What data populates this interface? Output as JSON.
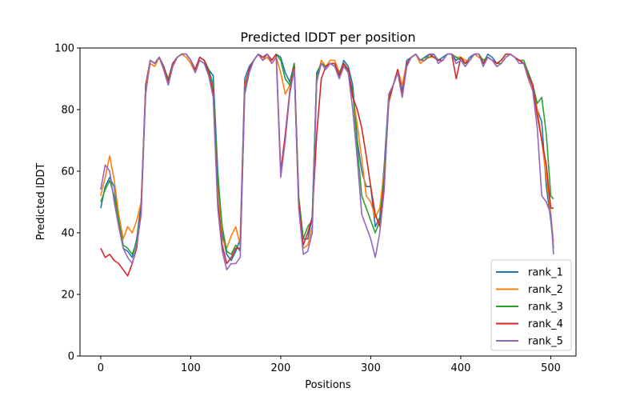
{
  "chart_data": {
    "type": "line",
    "title": "Predicted lDDT per position",
    "xlabel": "Positions",
    "ylabel": "Predicted lDDT",
    "xlim": [
      -23,
      528
    ],
    "ylim": [
      0,
      100
    ],
    "xticks": [
      0,
      100,
      200,
      300,
      400,
      500
    ],
    "yticks": [
      0,
      20,
      40,
      60,
      80,
      100
    ],
    "grid": false,
    "legend_position": "lower-right",
    "series": [
      {
        "name": "rank_1",
        "color": "#1f77b4",
        "x": [
          0,
          5,
          10,
          15,
          20,
          25,
          30,
          35,
          40,
          45,
          50,
          55,
          60,
          65,
          70,
          75,
          80,
          85,
          90,
          95,
          100,
          105,
          110,
          115,
          120,
          125,
          130,
          135,
          140,
          145,
          150,
          155,
          160,
          165,
          170,
          175,
          180,
          185,
          190,
          195,
          200,
          205,
          210,
          215,
          220,
          225,
          230,
          235,
          240,
          245,
          250,
          255,
          260,
          265,
          270,
          275,
          280,
          285,
          290,
          295,
          300,
          305,
          310,
          315,
          320,
          325,
          330,
          335,
          340,
          345,
          350,
          355,
          360,
          365,
          370,
          375,
          380,
          385,
          390,
          395,
          400,
          405,
          410,
          415,
          420,
          425,
          430,
          435,
          440,
          445,
          450,
          455,
          460,
          465,
          470,
          475,
          480,
          485,
          490,
          495,
          500,
          503
        ],
        "y": [
          48,
          55,
          58,
          55,
          45,
          35,
          34,
          32,
          38,
          50,
          85,
          96,
          95,
          97,
          94,
          89,
          95,
          97,
          98,
          98,
          96,
          93,
          97,
          96,
          93,
          91,
          60,
          40,
          33,
          31,
          34,
          38,
          90,
          94,
          96,
          98,
          97,
          98,
          96,
          98,
          97,
          92,
          89,
          95,
          50,
          38,
          38,
          45,
          92,
          95,
          94,
          95,
          95,
          91,
          96,
          94,
          88,
          70,
          60,
          55,
          55,
          42,
          45,
          62,
          85,
          88,
          93,
          86,
          96,
          97,
          98,
          96,
          97,
          98,
          98,
          96,
          97,
          98,
          98,
          96,
          97,
          95,
          97,
          98,
          98,
          95,
          98,
          97,
          95,
          96,
          98,
          98,
          97,
          96,
          95,
          92,
          88,
          80,
          76,
          55,
          44,
          35
        ]
      },
      {
        "name": "rank_2",
        "color": "#ff7f0e",
        "x": [
          0,
          5,
          10,
          15,
          20,
          25,
          30,
          35,
          40,
          45,
          50,
          55,
          60,
          65,
          70,
          75,
          80,
          85,
          90,
          95,
          100,
          105,
          110,
          115,
          120,
          125,
          130,
          135,
          140,
          145,
          150,
          155,
          160,
          165,
          170,
          175,
          180,
          185,
          190,
          195,
          200,
          205,
          210,
          215,
          220,
          225,
          230,
          235,
          240,
          245,
          250,
          255,
          260,
          265,
          270,
          275,
          280,
          285,
          290,
          295,
          300,
          305,
          310,
          315,
          320,
          325,
          330,
          335,
          340,
          345,
          350,
          355,
          360,
          365,
          370,
          375,
          380,
          385,
          390,
          395,
          400,
          405,
          410,
          415,
          420,
          425,
          430,
          435,
          440,
          445,
          450,
          455,
          460,
          465,
          470,
          475,
          480,
          485,
          490,
          495,
          500,
          503
        ],
        "y": [
          52,
          58,
          65,
          57,
          46,
          38,
          42,
          40,
          44,
          50,
          86,
          95,
          94,
          97,
          93,
          88,
          94,
          97,
          98,
          97,
          95,
          92,
          96,
          95,
          92,
          85,
          55,
          38,
          35,
          39,
          42,
          36,
          88,
          93,
          96,
          98,
          96,
          97,
          95,
          97,
          92,
          85,
          88,
          94,
          48,
          35,
          36,
          42,
          90,
          96,
          94,
          96,
          96,
          92,
          95,
          93,
          85,
          75,
          64,
          52,
          50,
          45,
          48,
          60,
          82,
          88,
          93,
          88,
          95,
          97,
          98,
          95,
          96,
          97,
          97,
          96,
          96,
          98,
          98,
          97,
          97,
          96,
          96,
          98,
          97,
          96,
          97,
          96,
          94,
          95,
          97,
          98,
          97,
          96,
          95,
          91,
          87,
          80,
          70,
          58,
          46,
          37
        ]
      },
      {
        "name": "rank_3",
        "color": "#2ca02c",
        "x": [
          0,
          5,
          10,
          15,
          20,
          25,
          30,
          35,
          40,
          45,
          50,
          55,
          60,
          65,
          70,
          75,
          80,
          85,
          90,
          95,
          100,
          105,
          110,
          115,
          120,
          125,
          130,
          135,
          140,
          145,
          150,
          155,
          160,
          165,
          170,
          175,
          180,
          185,
          190,
          195,
          200,
          205,
          210,
          215,
          220,
          225,
          230,
          235,
          240,
          245,
          250,
          255,
          260,
          265,
          270,
          275,
          280,
          285,
          290,
          295,
          300,
          305,
          310,
          315,
          320,
          325,
          330,
          335,
          340,
          345,
          350,
          355,
          360,
          365,
          370,
          375,
          380,
          385,
          390,
          395,
          400,
          405,
          410,
          415,
          420,
          425,
          430,
          435,
          440,
          445,
          450,
          455,
          460,
          465,
          470,
          475,
          480,
          485,
          490,
          495,
          500,
          503
        ],
        "y": [
          50,
          54,
          57,
          52,
          44,
          36,
          35,
          33,
          37,
          48,
          88,
          96,
          95,
          97,
          94,
          90,
          95,
          97,
          98,
          98,
          96,
          93,
          97,
          96,
          93,
          88,
          58,
          42,
          34,
          33,
          36,
          34,
          85,
          92,
          96,
          98,
          97,
          98,
          96,
          98,
          96,
          90,
          88,
          95,
          52,
          38,
          42,
          44,
          91,
          95,
          94,
          95,
          94,
          92,
          95,
          92,
          86,
          68,
          52,
          48,
          44,
          40,
          44,
          58,
          84,
          88,
          92,
          84,
          95,
          97,
          98,
          96,
          97,
          97,
          98,
          96,
          96,
          98,
          98,
          97,
          96,
          95,
          96,
          98,
          98,
          96,
          97,
          96,
          95,
          95,
          97,
          98,
          97,
          96,
          96,
          92,
          88,
          82,
          84,
          72,
          52,
          51
        ]
      },
      {
        "name": "rank_4",
        "color": "#d62728",
        "x": [
          0,
          5,
          10,
          15,
          20,
          25,
          30,
          35,
          40,
          45,
          50,
          55,
          60,
          65,
          70,
          75,
          80,
          85,
          90,
          95,
          100,
          105,
          110,
          115,
          120,
          125,
          130,
          135,
          140,
          145,
          150,
          155,
          160,
          165,
          170,
          175,
          180,
          185,
          190,
          195,
          200,
          205,
          210,
          215,
          220,
          225,
          230,
          235,
          240,
          245,
          250,
          255,
          260,
          265,
          270,
          275,
          280,
          285,
          290,
          295,
          300,
          305,
          310,
          315,
          320,
          325,
          330,
          335,
          340,
          345,
          350,
          355,
          360,
          365,
          370,
          375,
          380,
          385,
          390,
          395,
          400,
          405,
          410,
          415,
          420,
          425,
          430,
          435,
          440,
          445,
          450,
          455,
          460,
          465,
          470,
          475,
          480,
          485,
          490,
          495,
          500,
          503
        ],
        "y": [
          35,
          32,
          33,
          31,
          30,
          28,
          26,
          30,
          35,
          48,
          88,
          96,
          95,
          97,
          94,
          89,
          95,
          97,
          98,
          98,
          96,
          93,
          97,
          96,
          92,
          86,
          50,
          36,
          30,
          32,
          35,
          35,
          87,
          93,
          96,
          98,
          97,
          98,
          96,
          98,
          60,
          72,
          86,
          94,
          50,
          36,
          40,
          45,
          72,
          90,
          94,
          95,
          95,
          91,
          95,
          93,
          84,
          80,
          74,
          65,
          55,
          46,
          42,
          56,
          83,
          88,
          93,
          85,
          95,
          97,
          98,
          96,
          96,
          98,
          97,
          96,
          96,
          98,
          98,
          90,
          97,
          95,
          96,
          98,
          98,
          95,
          97,
          96,
          95,
          96,
          98,
          98,
          97,
          96,
          95,
          91,
          88,
          78,
          70,
          62,
          48,
          48
        ]
      },
      {
        "name": "rank_5",
        "color": "#9467bd",
        "x": [
          0,
          5,
          10,
          15,
          20,
          25,
          30,
          35,
          40,
          45,
          50,
          55,
          60,
          65,
          70,
          75,
          80,
          85,
          90,
          95,
          100,
          105,
          110,
          115,
          120,
          125,
          130,
          135,
          140,
          145,
          150,
          155,
          160,
          165,
          170,
          175,
          180,
          185,
          190,
          195,
          200,
          205,
          210,
          215,
          220,
          225,
          230,
          235,
          240,
          245,
          250,
          255,
          260,
          265,
          270,
          275,
          280,
          285,
          290,
          295,
          300,
          305,
          310,
          315,
          320,
          325,
          330,
          335,
          340,
          345,
          350,
          355,
          360,
          365,
          370,
          375,
          380,
          385,
          390,
          395,
          400,
          405,
          410,
          415,
          420,
          425,
          430,
          435,
          440,
          445,
          450,
          455,
          460,
          465,
          470,
          475,
          480,
          485,
          490,
          495,
          500,
          503
        ],
        "y": [
          54,
          62,
          60,
          50,
          42,
          35,
          32,
          30,
          36,
          46,
          87,
          96,
          95,
          97,
          93,
          88,
          94,
          97,
          98,
          98,
          96,
          92,
          96,
          95,
          91,
          84,
          48,
          34,
          28,
          30,
          30,
          32,
          86,
          92,
          96,
          98,
          96,
          98,
          95,
          97,
          58,
          70,
          85,
          93,
          48,
          33,
          34,
          40,
          89,
          95,
          93,
          95,
          94,
          90,
          94,
          92,
          80,
          64,
          46,
          42,
          38,
          32,
          40,
          54,
          85,
          88,
          92,
          84,
          94,
          97,
          98,
          96,
          96,
          98,
          98,
          95,
          96,
          98,
          98,
          95,
          96,
          94,
          96,
          98,
          98,
          94,
          97,
          96,
          94,
          95,
          97,
          98,
          97,
          95,
          95,
          90,
          86,
          74,
          52,
          50,
          46,
          33
        ]
      }
    ]
  }
}
